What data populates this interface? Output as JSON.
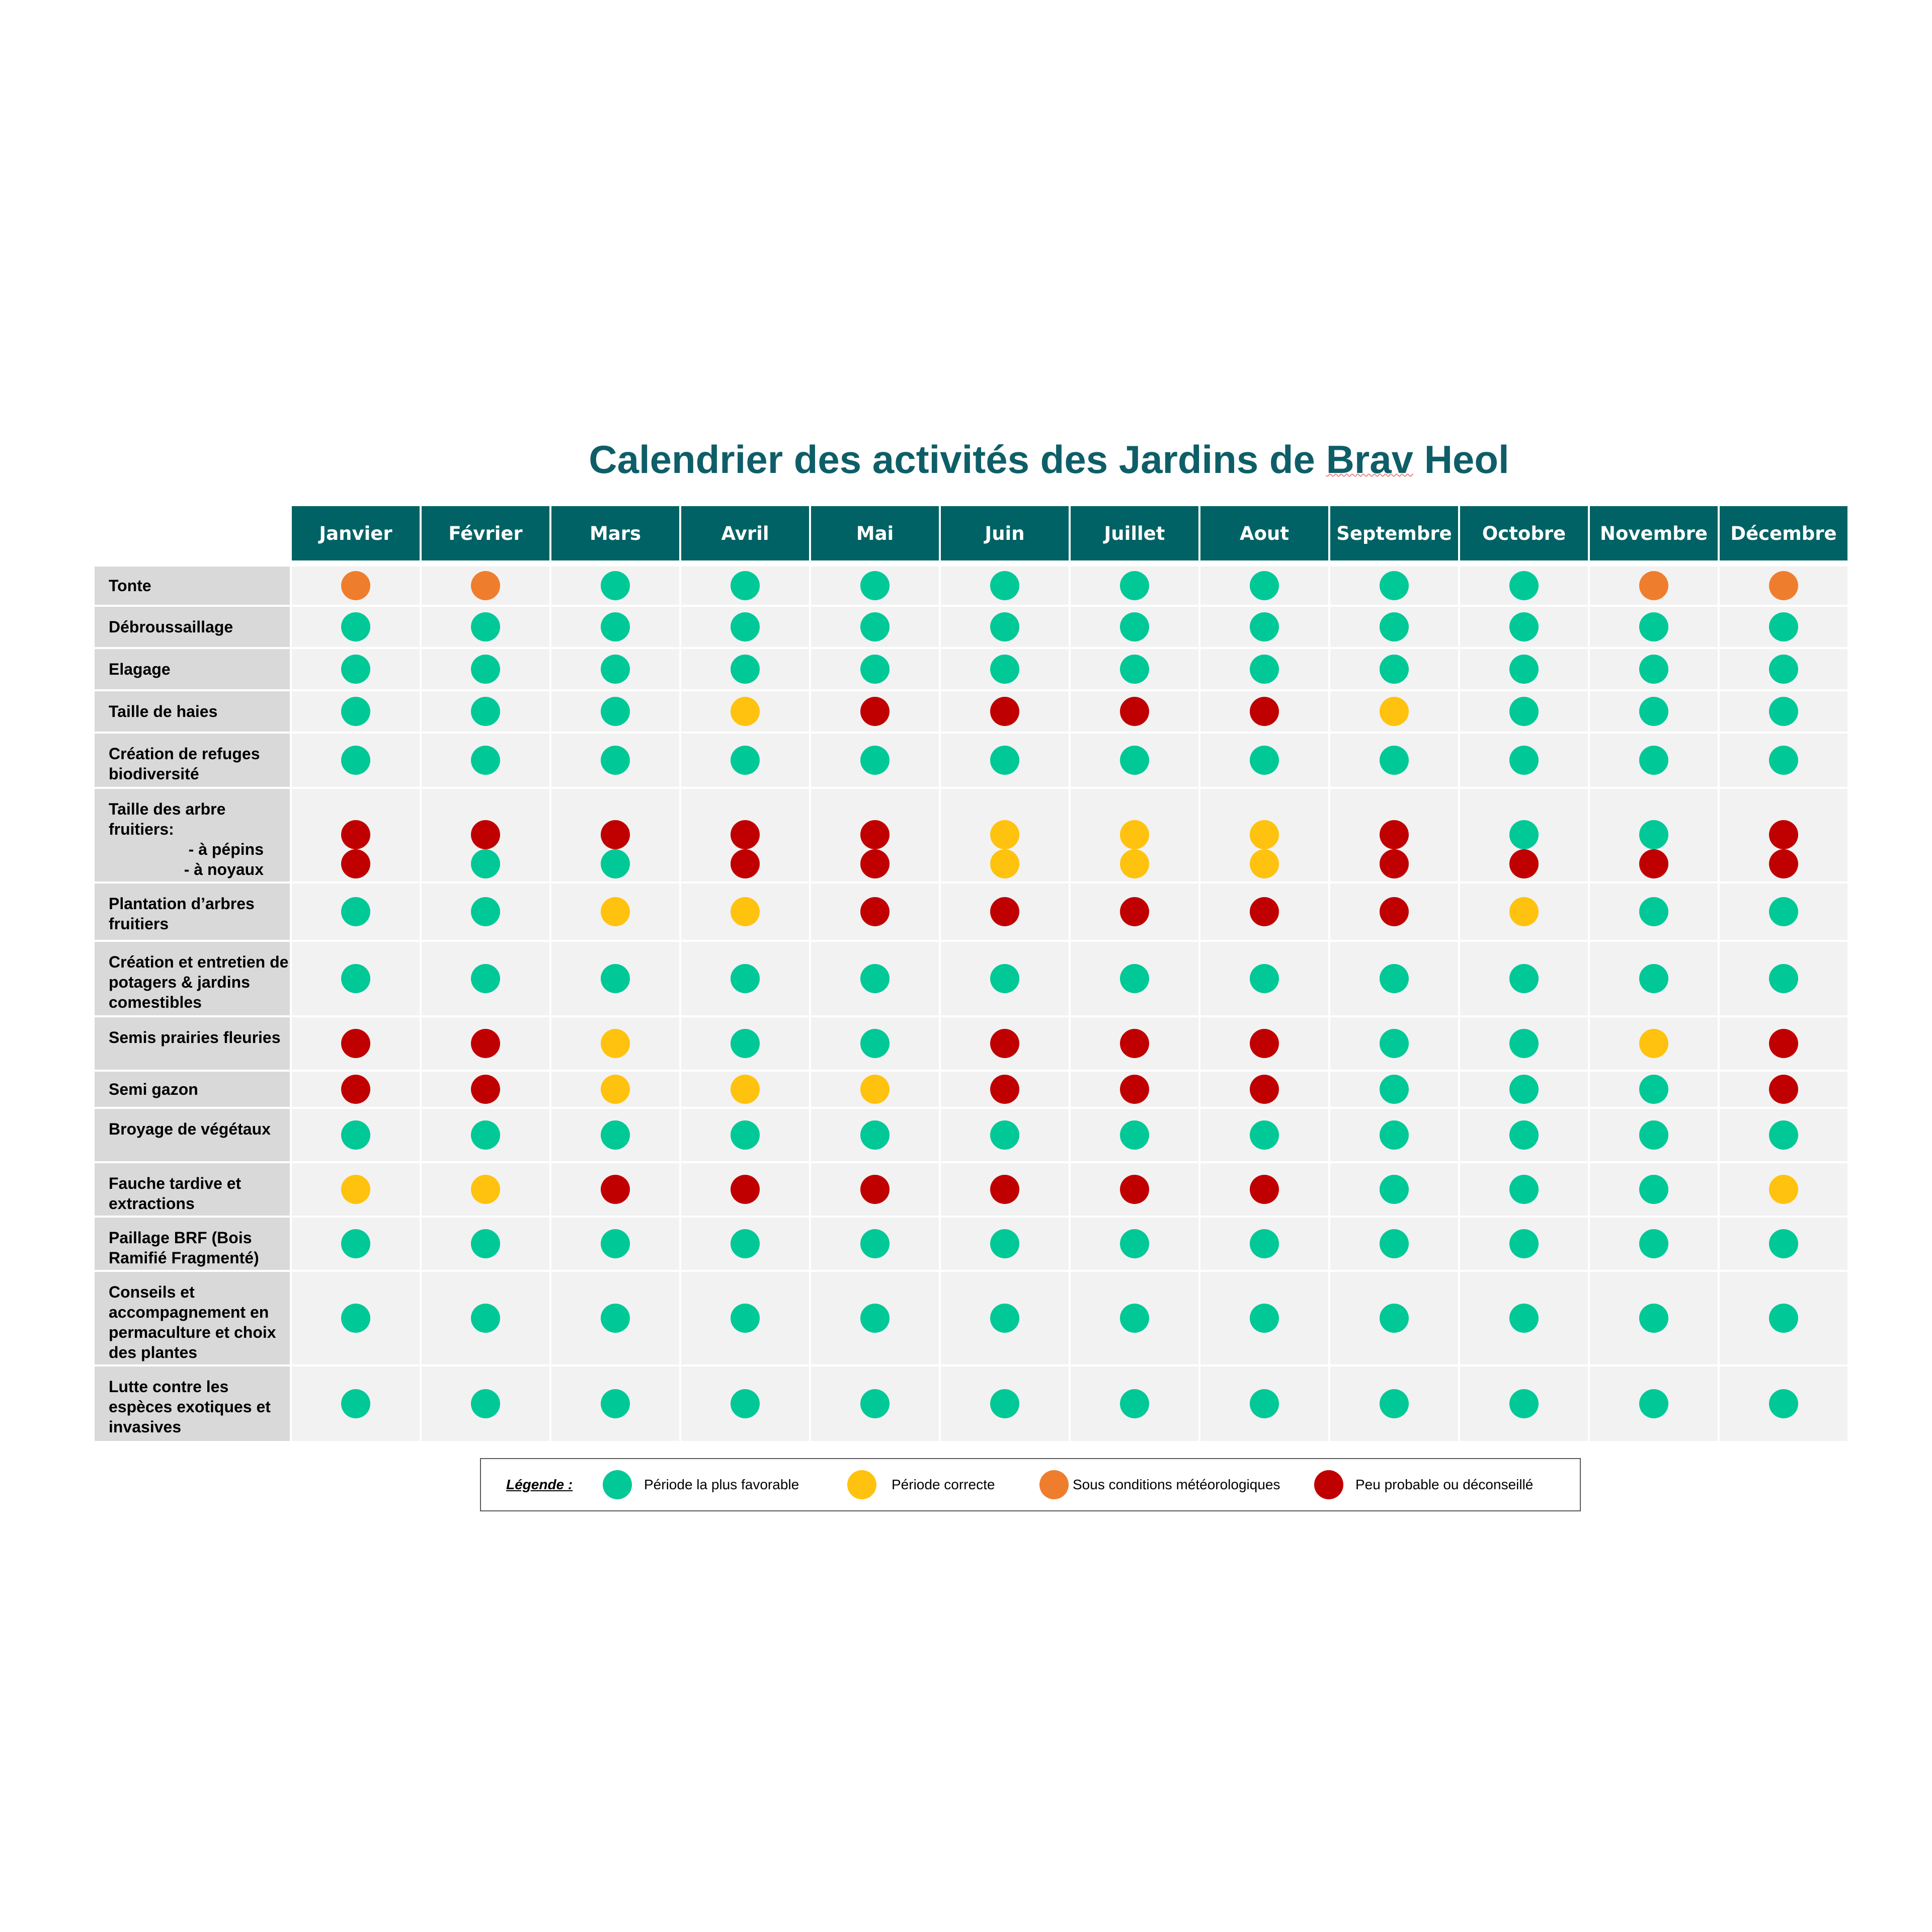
{
  "title": {
    "before": "Calendrier des activités des Jardins de ",
    "underlined": "Brav",
    "after": " Heol"
  },
  "months": [
    "Janvier",
    "Février",
    "Mars",
    "Avril",
    "Mai",
    "Juin",
    "Juillet",
    "Aout",
    "Septembre",
    "Octobre",
    "Novembre",
    "Décembre"
  ],
  "status_colors": {
    "favorable": "#00c896",
    "correcte": "#ffc20e",
    "meteo": "#ef7d2e",
    "deconseille": "#c00000"
  },
  "activities": [
    {
      "label": "Tonte",
      "values": [
        "meteo",
        "meteo",
        "favorable",
        "favorable",
        "favorable",
        "favorable",
        "favorable",
        "favorable",
        "favorable",
        "favorable",
        "meteo",
        "meteo"
      ]
    },
    {
      "label": "Débroussaillage",
      "values": [
        "favorable",
        "favorable",
        "favorable",
        "favorable",
        "favorable",
        "favorable",
        "favorable",
        "favorable",
        "favorable",
        "favorable",
        "favorable",
        "favorable"
      ]
    },
    {
      "label": "Elagage",
      "values": [
        "favorable",
        "favorable",
        "favorable",
        "favorable",
        "favorable",
        "favorable",
        "favorable",
        "favorable",
        "favorable",
        "favorable",
        "favorable",
        "favorable"
      ]
    },
    {
      "label": "Taille de haies",
      "values": [
        "favorable",
        "favorable",
        "favorable",
        "correcte",
        "deconseille",
        "deconseille",
        "deconseille",
        "deconseille",
        "correcte",
        "favorable",
        "favorable",
        "favorable"
      ]
    },
    {
      "label": "Création de refuges biodiversité",
      "values": [
        "favorable",
        "favorable",
        "favorable",
        "favorable",
        "favorable",
        "favorable",
        "favorable",
        "favorable",
        "favorable",
        "favorable",
        "favorable",
        "favorable"
      ]
    },
    {
      "label": "Taille des arbre fruitiers:",
      "sub_labels": [
        "- à pépins",
        "- à noyaux"
      ],
      "values": [
        "deconseille",
        "deconseille",
        "deconseille",
        "deconseille",
        "deconseille",
        "correcte",
        "correcte",
        "correcte",
        "deconseille",
        "favorable",
        "favorable",
        "deconseille"
      ],
      "values2": [
        "deconseille",
        "favorable",
        "favorable",
        "deconseille",
        "deconseille",
        "correcte",
        "correcte",
        "correcte",
        "deconseille",
        "deconseille",
        "deconseille",
        "deconseille"
      ]
    },
    {
      "label": "Plantation d’arbres fruitiers",
      "values": [
        "favorable",
        "favorable",
        "correcte",
        "correcte",
        "deconseille",
        "deconseille",
        "deconseille",
        "deconseille",
        "deconseille",
        "correcte",
        "favorable",
        "favorable"
      ]
    },
    {
      "label": "Création et entretien de potagers & jardins comestibles",
      "values": [
        "favorable",
        "favorable",
        "favorable",
        "favorable",
        "favorable",
        "favorable",
        "favorable",
        "favorable",
        "favorable",
        "favorable",
        "favorable",
        "favorable"
      ]
    },
    {
      "label": "Semis prairies fleuries",
      "values": [
        "deconseille",
        "deconseille",
        "correcte",
        "favorable",
        "favorable",
        "deconseille",
        "deconseille",
        "deconseille",
        "favorable",
        "favorable",
        "correcte",
        "deconseille"
      ]
    },
    {
      "label": "Semi gazon",
      "values": [
        "deconseille",
        "deconseille",
        "correcte",
        "correcte",
        "correcte",
        "deconseille",
        "deconseille",
        "deconseille",
        "favorable",
        "favorable",
        "favorable",
        "deconseille"
      ]
    },
    {
      "label": "Broyage de végétaux",
      "values": [
        "favorable",
        "favorable",
        "favorable",
        "favorable",
        "favorable",
        "favorable",
        "favorable",
        "favorable",
        "favorable",
        "favorable",
        "favorable",
        "favorable"
      ]
    },
    {
      "label": "Fauche tardive et extractions",
      "values": [
        "correcte",
        "correcte",
        "deconseille",
        "deconseille",
        "deconseille",
        "deconseille",
        "deconseille",
        "deconseille",
        "favorable",
        "favorable",
        "favorable",
        "correcte"
      ]
    },
    {
      "label": "Paillage BRF (Bois Ramifié Fragmenté)",
      "values": [
        "favorable",
        "favorable",
        "favorable",
        "favorable",
        "favorable",
        "favorable",
        "favorable",
        "favorable",
        "favorable",
        "favorable",
        "favorable",
        "favorable"
      ]
    },
    {
      "label": "Conseils et accompagnement en permaculture et choix des plantes",
      "values": [
        "favorable",
        "favorable",
        "favorable",
        "favorable",
        "favorable",
        "favorable",
        "favorable",
        "favorable",
        "favorable",
        "favorable",
        "favorable",
        "favorable"
      ]
    },
    {
      "label": "Lutte contre les espèces exotiques et invasives",
      "values": [
        "favorable",
        "favorable",
        "favorable",
        "favorable",
        "favorable",
        "favorable",
        "favorable",
        "favorable",
        "favorable",
        "favorable",
        "favorable",
        "favorable"
      ]
    }
  ],
  "legend": {
    "title": "Légende :",
    "items": [
      {
        "status": "favorable",
        "label": "Période la plus favorable"
      },
      {
        "status": "correcte",
        "label": "Période correcte"
      },
      {
        "status": "meteo",
        "label": "Sous conditions météorologiques"
      },
      {
        "status": "deconseille",
        "label": "Peu probable ou déconseillé"
      }
    ]
  }
}
